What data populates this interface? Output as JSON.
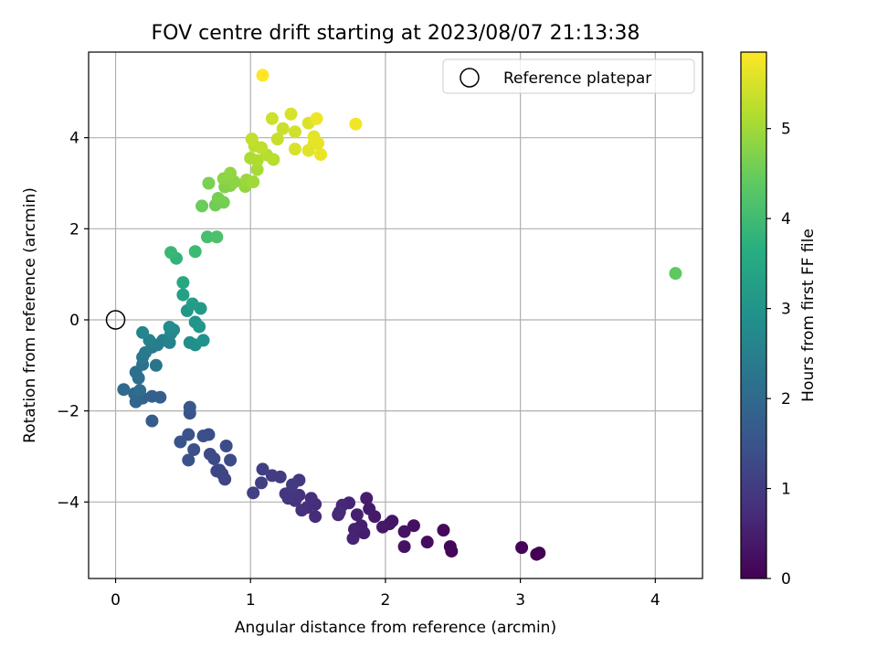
{
  "chart_data": {
    "type": "scatter",
    "title": "FOV centre drift starting at 2023/08/07 21:13:38",
    "xlabel": "Angular distance from reference (arcmin)",
    "ylabel": "Rotation from reference (arcmin)",
    "xlim": [
      -0.2,
      4.35
    ],
    "ylim": [
      -5.68,
      5.88
    ],
    "xticks": [
      "0",
      "1",
      "2",
      "3",
      "4"
    ],
    "yticks": [
      "−4",
      "−2",
      "0",
      "2",
      "4"
    ],
    "grid": true,
    "legend": {
      "placement": "top-right",
      "entries": [
        "Reference platepar"
      ]
    },
    "reference_point": {
      "x": 0,
      "y": 0,
      "label": "Reference platepar"
    },
    "colorbar": {
      "label": "Hours from first FF file",
      "colormap": "viridis",
      "range": [
        0,
        5.85
      ],
      "ticks": [
        "0",
        "1",
        "2",
        "3",
        "4",
        "5"
      ]
    },
    "series": [
      {
        "points": [
          {
            "x": 3.12,
            "y": -5.15,
            "c": 0.0
          },
          {
            "x": 3.14,
            "y": -5.12,
            "c": 0.02
          },
          {
            "x": 3.01,
            "y": -5.0,
            "c": 0.05
          },
          {
            "x": 2.49,
            "y": -5.08,
            "c": 0.1
          },
          {
            "x": 2.48,
            "y": -4.98,
            "c": 0.12
          },
          {
            "x": 2.43,
            "y": -4.62,
            "c": 0.15
          },
          {
            "x": 2.31,
            "y": -4.88,
            "c": 0.2
          },
          {
            "x": 2.21,
            "y": -4.52,
            "c": 0.25
          },
          {
            "x": 2.14,
            "y": -4.98,
            "c": 0.28
          },
          {
            "x": 2.14,
            "y": -4.65,
            "c": 0.3
          },
          {
            "x": 2.05,
            "y": -4.42,
            "c": 0.33
          },
          {
            "x": 2.03,
            "y": -4.48,
            "c": 0.35
          },
          {
            "x": 1.98,
            "y": -4.55,
            "c": 0.38
          },
          {
            "x": 1.92,
            "y": -4.32,
            "c": 0.4
          },
          {
            "x": 1.88,
            "y": -4.15,
            "c": 0.42
          },
          {
            "x": 1.86,
            "y": -3.92,
            "c": 0.45
          },
          {
            "x": 1.84,
            "y": -4.68,
            "c": 0.48
          },
          {
            "x": 1.82,
            "y": -4.52,
            "c": 0.5
          },
          {
            "x": 1.79,
            "y": -4.28,
            "c": 0.52
          },
          {
            "x": 1.77,
            "y": -4.6,
            "c": 0.55
          },
          {
            "x": 1.76,
            "y": -4.8,
            "c": 0.58
          },
          {
            "x": 1.73,
            "y": -4.02,
            "c": 0.6
          },
          {
            "x": 1.68,
            "y": -4.07,
            "c": 0.63
          },
          {
            "x": 1.65,
            "y": -4.28,
            "c": 0.65
          },
          {
            "x": 1.66,
            "y": -4.22,
            "c": 0.68
          },
          {
            "x": 1.48,
            "y": -4.32,
            "c": 0.72
          },
          {
            "x": 1.48,
            "y": -4.05,
            "c": 0.75
          },
          {
            "x": 1.45,
            "y": -3.92,
            "c": 0.78
          },
          {
            "x": 1.42,
            "y": -4.12,
            "c": 0.8
          },
          {
            "x": 1.38,
            "y": -4.18,
            "c": 0.82
          },
          {
            "x": 1.36,
            "y": -3.85,
            "c": 0.85
          },
          {
            "x": 1.33,
            "y": -3.97,
            "c": 0.88
          },
          {
            "x": 1.3,
            "y": -3.78,
            "c": 0.9
          },
          {
            "x": 1.28,
            "y": -3.92,
            "c": 0.92
          },
          {
            "x": 1.26,
            "y": -3.82,
            "c": 0.95
          },
          {
            "x": 1.36,
            "y": -3.52,
            "c": 0.97
          },
          {
            "x": 1.31,
            "y": -3.62,
            "c": 1.0
          },
          {
            "x": 1.22,
            "y": -3.45,
            "c": 1.02
          },
          {
            "x": 1.16,
            "y": -3.42,
            "c": 1.05
          },
          {
            "x": 1.09,
            "y": -3.28,
            "c": 1.08
          },
          {
            "x": 1.08,
            "y": -3.58,
            "c": 1.1
          },
          {
            "x": 1.02,
            "y": -3.8,
            "c": 1.12
          },
          {
            "x": 0.81,
            "y": -3.5,
            "c": 1.18
          },
          {
            "x": 0.79,
            "y": -3.38,
            "c": 1.2
          },
          {
            "x": 0.77,
            "y": -3.3,
            "c": 1.22
          },
          {
            "x": 0.75,
            "y": -3.32,
            "c": 1.25
          },
          {
            "x": 0.73,
            "y": -3.05,
            "c": 1.28
          },
          {
            "x": 0.7,
            "y": -2.95,
            "c": 1.3
          },
          {
            "x": 0.85,
            "y": -3.08,
            "c": 1.32
          },
          {
            "x": 0.82,
            "y": -2.77,
            "c": 1.35
          },
          {
            "x": 0.69,
            "y": -2.52,
            "c": 1.38
          },
          {
            "x": 0.65,
            "y": -2.55,
            "c": 1.4
          },
          {
            "x": 0.58,
            "y": -2.85,
            "c": 1.43
          },
          {
            "x": 0.54,
            "y": -3.08,
            "c": 1.45
          },
          {
            "x": 0.54,
            "y": -2.52,
            "c": 1.48
          },
          {
            "x": 0.48,
            "y": -2.68,
            "c": 1.5
          },
          {
            "x": 0.55,
            "y": -2.05,
            "c": 1.55
          },
          {
            "x": 0.55,
            "y": -1.92,
            "c": 1.58
          },
          {
            "x": 0.27,
            "y": -2.22,
            "c": 1.7
          },
          {
            "x": 0.33,
            "y": -1.7,
            "c": 1.75
          },
          {
            "x": 0.27,
            "y": -1.68,
            "c": 1.8
          },
          {
            "x": 0.2,
            "y": -1.72,
            "c": 1.85
          },
          {
            "x": 0.15,
            "y": -1.8,
            "c": 1.9
          },
          {
            "x": 0.14,
            "y": -1.62,
            "c": 1.95
          },
          {
            "x": 0.06,
            "y": -1.53,
            "c": 2.0
          },
          {
            "x": 0.18,
            "y": -1.55,
            "c": 2.05
          },
          {
            "x": 0.17,
            "y": -1.28,
            "c": 2.1
          },
          {
            "x": 0.15,
            "y": -1.15,
            "c": 2.15
          },
          {
            "x": 0.2,
            "y": -0.98,
            "c": 2.2
          },
          {
            "x": 0.3,
            "y": -1.0,
            "c": 2.25
          },
          {
            "x": 0.2,
            "y": -0.82,
            "c": 2.3
          },
          {
            "x": 0.22,
            "y": -0.72,
            "c": 2.35
          },
          {
            "x": 0.27,
            "y": -0.6,
            "c": 2.4
          },
          {
            "x": 0.31,
            "y": -0.55,
            "c": 2.45
          },
          {
            "x": 0.35,
            "y": -0.45,
            "c": 2.5
          },
          {
            "x": 0.25,
            "y": -0.45,
            "c": 2.55
          },
          {
            "x": 0.4,
            "y": -0.5,
            "c": 2.6
          },
          {
            "x": 0.2,
            "y": -0.28,
            "c": 2.65
          },
          {
            "x": 0.41,
            "y": -0.3,
            "c": 2.7
          },
          {
            "x": 0.43,
            "y": -0.22,
            "c": 2.75
          },
          {
            "x": 0.4,
            "y": -0.16,
            "c": 2.8
          },
          {
            "x": 0.55,
            "y": -0.5,
            "c": 2.85
          },
          {
            "x": 0.59,
            "y": -0.55,
            "c": 2.9
          },
          {
            "x": 0.65,
            "y": -0.45,
            "c": 2.95
          },
          {
            "x": 0.59,
            "y": -0.05,
            "c": 3.0
          },
          {
            "x": 0.62,
            "y": -0.15,
            "c": 3.05
          },
          {
            "x": 0.53,
            "y": 0.2,
            "c": 3.1
          },
          {
            "x": 0.63,
            "y": 0.25,
            "c": 3.15
          },
          {
            "x": 0.57,
            "y": 0.35,
            "c": 3.2
          },
          {
            "x": 0.5,
            "y": 0.55,
            "c": 3.3
          },
          {
            "x": 0.5,
            "y": 0.82,
            "c": 3.5
          },
          {
            "x": 0.45,
            "y": 1.35,
            "c": 3.8
          },
          {
            "x": 0.41,
            "y": 1.48,
            "c": 3.9
          },
          {
            "x": 0.59,
            "y": 1.5,
            "c": 3.95
          },
          {
            "x": 0.68,
            "y": 1.82,
            "c": 4.1
          },
          {
            "x": 0.75,
            "y": 1.82,
            "c": 4.15
          },
          {
            "x": 4.15,
            "y": 1.02,
            "c": 4.4
          },
          {
            "x": 0.64,
            "y": 2.5,
            "c": 4.5
          },
          {
            "x": 0.74,
            "y": 2.52,
            "c": 4.55
          },
          {
            "x": 0.8,
            "y": 2.58,
            "c": 4.6
          },
          {
            "x": 0.76,
            "y": 2.67,
            "c": 4.62
          },
          {
            "x": 0.69,
            "y": 3.0,
            "c": 4.65
          },
          {
            "x": 0.81,
            "y": 2.92,
            "c": 4.7
          },
          {
            "x": 0.85,
            "y": 2.95,
            "c": 4.75
          },
          {
            "x": 0.88,
            "y": 3.03,
            "c": 4.8
          },
          {
            "x": 0.8,
            "y": 3.1,
            "c": 4.82
          },
          {
            "x": 0.85,
            "y": 3.22,
            "c": 4.85
          },
          {
            "x": 0.96,
            "y": 2.93,
            "c": 4.9
          },
          {
            "x": 0.97,
            "y": 3.07,
            "c": 4.95
          },
          {
            "x": 1.02,
            "y": 3.03,
            "c": 5.0
          },
          {
            "x": 1.05,
            "y": 3.3,
            "c": 5.05
          },
          {
            "x": 1.0,
            "y": 3.55,
            "c": 5.1
          },
          {
            "x": 1.05,
            "y": 3.5,
            "c": 5.15
          },
          {
            "x": 1.12,
            "y": 3.62,
            "c": 5.2
          },
          {
            "x": 1.17,
            "y": 3.52,
            "c": 5.22
          },
          {
            "x": 1.03,
            "y": 3.82,
            "c": 5.25
          },
          {
            "x": 1.08,
            "y": 3.78,
            "c": 5.28
          },
          {
            "x": 1.01,
            "y": 3.97,
            "c": 5.3
          },
          {
            "x": 1.2,
            "y": 3.97,
            "c": 5.35
          },
          {
            "x": 1.24,
            "y": 4.2,
            "c": 5.38
          },
          {
            "x": 1.16,
            "y": 4.42,
            "c": 5.4
          },
          {
            "x": 1.33,
            "y": 4.13,
            "c": 5.45
          },
          {
            "x": 1.3,
            "y": 4.52,
            "c": 5.5
          },
          {
            "x": 1.33,
            "y": 3.75,
            "c": 5.52
          },
          {
            "x": 1.43,
            "y": 4.32,
            "c": 5.55
          },
          {
            "x": 1.43,
            "y": 3.72,
            "c": 5.58
          },
          {
            "x": 1.47,
            "y": 3.87,
            "c": 5.6
          },
          {
            "x": 1.47,
            "y": 4.02,
            "c": 5.62
          },
          {
            "x": 1.5,
            "y": 3.88,
            "c": 5.65
          },
          {
            "x": 1.52,
            "y": 3.63,
            "c": 5.68
          },
          {
            "x": 1.49,
            "y": 4.42,
            "c": 5.72
          },
          {
            "x": 1.78,
            "y": 4.3,
            "c": 5.75
          },
          {
            "x": 1.09,
            "y": 5.37,
            "c": 5.85
          }
        ]
      }
    ]
  }
}
